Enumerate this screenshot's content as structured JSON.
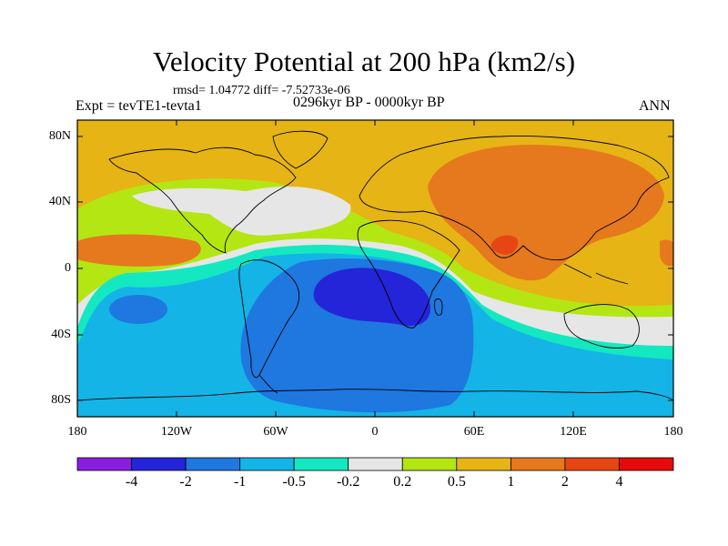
{
  "title": "Velocity Potential at 200 hPa (km2/s)",
  "stats": "rmsd= 1.04772 diff= -7.52733e-06",
  "subtitle": "0296kyr BP - 0000kyr BP",
  "left_label": "Expt = tevTE1-tevta1",
  "right_label": "ANN",
  "lat_labels": [
    "80N",
    "40N",
    "0",
    "40S",
    "80S"
  ],
  "lon_labels": [
    "180",
    "120W",
    "60W",
    "0",
    "60E",
    "120E",
    "180"
  ],
  "colorbar": {
    "colors": [
      "#8a1ee0",
      "#2424d8",
      "#1f77e0",
      "#14b4e6",
      "#14e8c0",
      "#e6e6e6",
      "#b4e614",
      "#e6b414",
      "#e6781e",
      "#e64614",
      "#e60a0a"
    ],
    "labels": [
      "-4",
      "-2",
      "-1",
      "-0.5",
      "-0.2",
      "0.2",
      "0.5",
      "1",
      "2",
      "4"
    ]
  }
}
